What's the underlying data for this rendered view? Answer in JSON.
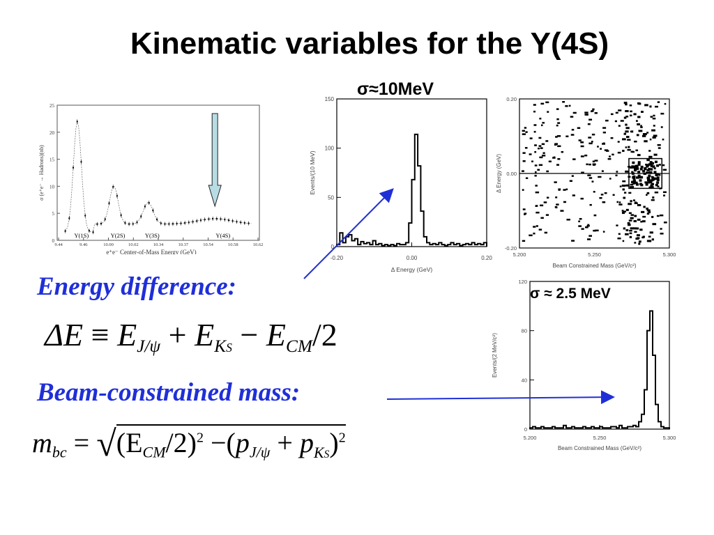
{
  "title": "Kinematic variables for the Y(4S)",
  "energy_heading": "Energy difference:",
  "mass_heading": "Beam-constrained mass:",
  "sigma_de": "σ≈10MeV",
  "sigma_mbc": "σ ≈ 2.5 MeV",
  "equations": {
    "de": {
      "lhs": "ΔE",
      "op": "≡",
      "e": "E",
      "jpsi": "J/ψ",
      "plus": "+",
      "ks": "K",
      "ks_sub": "S",
      "minus": "−",
      "cm": "CM",
      "div": "/2"
    },
    "mbc": {
      "lhs": "m",
      "lhs_sub": "bc",
      "eq": "=",
      "open": "(E",
      "cm": "CM",
      "half": "/2)",
      "sq": "2",
      "minus": "−(",
      "p": "p",
      "jpsi": "J/ψ",
      "plus": "+",
      "ks": "K",
      "ks_sub": "S",
      "close": ")",
      "sq2": "2"
    }
  },
  "colors": {
    "accent": "#1f2fd8",
    "arrow_fill": "#b8dce4"
  },
  "chart_data": [
    {
      "type": "line",
      "xlabel": "e⁺e⁻ Center-of-Mass Energy (GeV)",
      "ylabel": "σ (e⁺e⁻ → Hadrons)(nb)",
      "ylim": [
        0,
        25
      ],
      "yticks": [
        "0",
        "5",
        "10",
        "15",
        "20",
        "25"
      ],
      "xticks": [
        "9.44",
        "9.46",
        "10.00",
        "10.02",
        "10.34",
        "10.37",
        "10.54",
        "10.58",
        "10.62"
      ],
      "peaks": [
        "Y(1S)",
        "Y(2S)",
        "Y(3S)",
        "Y(4S)"
      ],
      "peak_heights": [
        22,
        10,
        7,
        4
      ]
    },
    {
      "type": "bar",
      "xlabel": "Δ Energy (GeV)",
      "ylabel": "Events/(10 MeV)",
      "xlim": [
        -0.2,
        0.2
      ],
      "ylim": [
        0,
        150
      ],
      "xticks": [
        "-0.20",
        "0.00",
        "0.20"
      ],
      "yticks": [
        "0",
        "50",
        "100",
        "150"
      ],
      "values": [
        2,
        14,
        4,
        10,
        12,
        6,
        8,
        2,
        5,
        3,
        4,
        2,
        6,
        2,
        3,
        1,
        2,
        1,
        2,
        1,
        3,
        2,
        2,
        4,
        24,
        68,
        114,
        82,
        36,
        10,
        4,
        2,
        3,
        2,
        4,
        2,
        1,
        2,
        4,
        2,
        3,
        1,
        2,
        3,
        2,
        4,
        2,
        3,
        2,
        4
      ]
    },
    {
      "type": "scatter",
      "xlabel": "Beam Constrained Mass (GeV/c²)",
      "ylabel": "Δ Energy (GeV)",
      "xlim": [
        5.2,
        5.3
      ],
      "ylim": [
        -0.2,
        0.2
      ],
      "xticks": [
        "5.200",
        "5.250",
        "5.300"
      ],
      "yticks": [
        "-0.20",
        "0.00",
        "0.20"
      ]
    },
    {
      "type": "bar",
      "xlabel": "Beam Constrained Mass (GeV/c²)",
      "ylabel": "Events/(2 MeV/c²)",
      "xlim": [
        5.2,
        5.3
      ],
      "ylim": [
        0,
        120
      ],
      "xticks": [
        "5.200",
        "5.250",
        "5.300"
      ],
      "yticks": [
        "0",
        "40",
        "80",
        "120"
      ],
      "values": [
        1,
        2,
        1,
        1,
        2,
        1,
        1,
        1,
        2,
        1,
        1,
        1,
        3,
        1,
        1,
        2,
        1,
        1,
        1,
        2,
        1,
        1,
        2,
        1,
        1,
        2,
        1,
        1,
        1,
        2,
        2,
        1,
        3,
        1,
        1,
        2,
        2,
        3,
        2,
        6,
        12,
        32,
        80,
        96,
        60,
        20,
        6,
        2,
        1,
        1
      ]
    }
  ]
}
